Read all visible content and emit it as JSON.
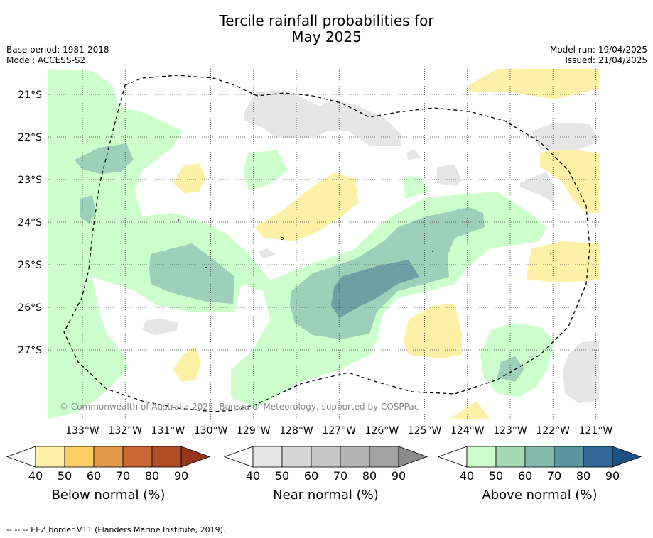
{
  "title": {
    "line1": "Tercile rainfall probabilities for",
    "line2": "May 2025"
  },
  "meta": {
    "base_period": "Base period: 1981-2018",
    "model": "Model: ACCESS-S2",
    "model_run": "Model run: 19/04/2025",
    "issued": "Issued: 21/04/2025"
  },
  "map": {
    "lat_labels": [
      "21°S",
      "22°S",
      "23°S",
      "24°S",
      "25°S",
      "26°S",
      "27°S"
    ],
    "lon_labels": [
      "133°W",
      "132°W",
      "131°W",
      "130°W",
      "129°W",
      "128°W",
      "127°W",
      "126°W",
      "125°W",
      "124°W",
      "123°W",
      "122°W",
      "121°W"
    ],
    "copyright": "© Commonwealth of Australia 2025, Bureau of Meteorology, supported by COSPPac",
    "border_style": "dashed"
  },
  "legends": [
    {
      "label": "Below normal (%)",
      "ticks": [
        "40",
        "50",
        "60",
        "70",
        "80",
        "90"
      ],
      "colors": [
        "#fff0a8",
        "#fece66",
        "#e09a4a",
        "#ca6534",
        "#b04d28",
        "#93341f"
      ]
    },
    {
      "label": "Near normal (%)",
      "ticks": [
        "40",
        "50",
        "60",
        "70",
        "80",
        "90"
      ],
      "colors": [
        "#e6e6e6",
        "#d6d6d6",
        "#c6c6c6",
        "#b4b4b4",
        "#a2a2a2",
        "#8c8c8c"
      ]
    },
    {
      "label": "Above normal (%)",
      "ticks": [
        "40",
        "50",
        "60",
        "70",
        "80",
        "90"
      ],
      "colors": [
        "#ccffcc",
        "#a5d8b4",
        "#84b9ad",
        "#5a95a1",
        "#336699",
        "#1e4f85"
      ]
    }
  ],
  "footnote": "-- -- -- EEZ border V11 (Flanders Marine Institute, 2019).",
  "colors": {
    "above_40": "#ccffcc",
    "above_50": "#9dcfb9",
    "above_60": "#6f9fa4",
    "below_40": "#fff0a8",
    "near_40": "#e6e6e6"
  }
}
